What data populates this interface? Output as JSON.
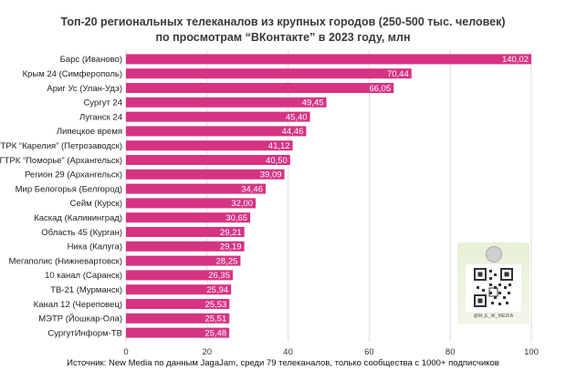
{
  "header": {
    "title_line1": "Топ-20 региональных телеканалов из крупных городов (250-500 тыс. человек)",
    "title_line2": "по просмотрам “ВКонтакте” в 2023 году, млн"
  },
  "footer": {
    "source": "Источник: New Media по данным JagaJam, среди 79 телеканалов, только сообщества с 1000+ подписчиков"
  },
  "qr_card": {
    "handle": "@M_E_W_MEDIA"
  },
  "colors": {
    "bar": "#d63384",
    "bar_label_text": "#ffffff",
    "grid": "#dcdcdc"
  },
  "chart_data": {
    "type": "bar",
    "orientation": "horizontal",
    "categories": [
      "Барс (Иваново)",
      "Крым 24 (Симферополь)",
      "Ариг Ус (Улан-Удэ)",
      "Сургут 24",
      "Луганск 24",
      "Липецкое время",
      "ГТРК “Карелия” (Петрозаводск)",
      "ГТРК “Поморье” (Архангельск)",
      "Регион 29 (Архангельск)",
      "Мир Белогорья (Белгород)",
      "Сейм (Курск)",
      "Каскад (Калининград)",
      "Область 45 (Курган)",
      "Ника (Калуга)",
      "Мегаполис (Нижневартовск)",
      "10 канал (Саранск)",
      "ТВ-21 (Мурманск)",
      "Канал 12 (Череповец)",
      "МЭТР (Йошкар-Ола)",
      "СургутИнформ-ТВ"
    ],
    "values": [
      140.02,
      70.44,
      66.05,
      49.45,
      45.4,
      44.46,
      41.12,
      40.5,
      39.09,
      34.46,
      32.0,
      30.65,
      29.21,
      29.19,
      28.25,
      26.35,
      25.94,
      25.53,
      25.51,
      25.48
    ],
    "value_labels": [
      "140,02",
      "70,44",
      "66,05",
      "49,45",
      "45,40",
      "44,46",
      "41,12",
      "40,50",
      "39,09",
      "34,46",
      "32,00",
      "30,65",
      "29,21",
      "29,19",
      "28,25",
      "26,35",
      "25,94",
      "25,53",
      "25,51",
      "25,48"
    ],
    "xlim": [
      0,
      100
    ],
    "xticks": [
      0,
      20,
      40,
      60,
      80,
      100
    ],
    "grid": true,
    "legend": "none"
  }
}
